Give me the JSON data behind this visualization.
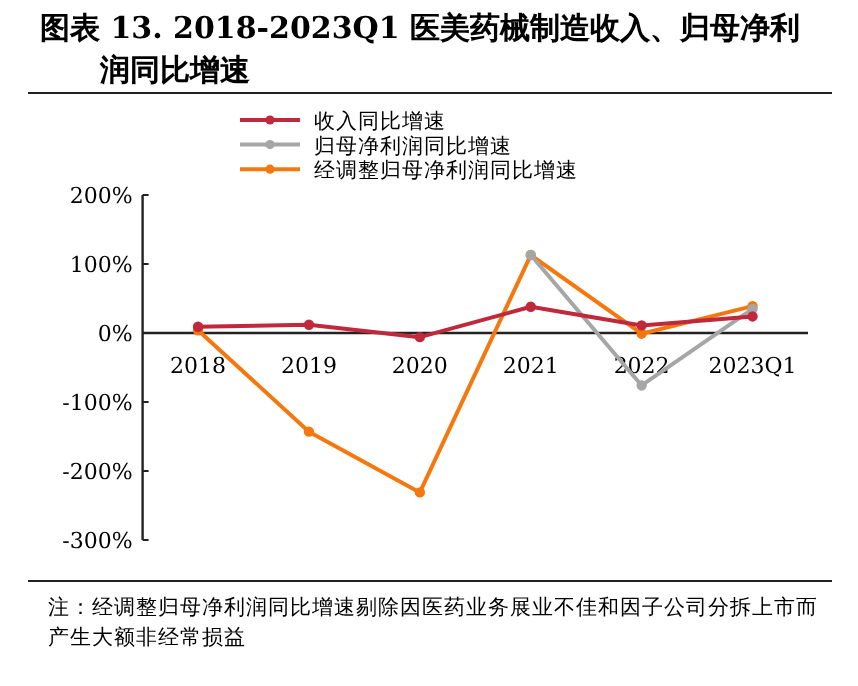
{
  "chart_data": {
    "type": "line",
    "title": "图表 13. 2018-2023Q1 医美药械制造收入、归母净利润同比增速",
    "categories": [
      "2018",
      "2019",
      "2020",
      "2021",
      "2022",
      "2023Q1"
    ],
    "series": [
      {
        "name": "收入同比增速",
        "color": "#c0283c",
        "values": [
          9,
          12,
          -6,
          38,
          11,
          24
        ]
      },
      {
        "name": "归母净利润同比增速",
        "color": "#a6a6a6",
        "values": [
          null,
          null,
          null,
          113,
          -76,
          35
        ]
      },
      {
        "name": "经调整归母净利润同比增速",
        "color": "#f5780f",
        "values": [
          4,
          -143,
          -231,
          113,
          -1,
          39
        ]
      }
    ],
    "ylim": [
      -300,
      200
    ],
    "yticks": [
      {
        "value": -300,
        "label": "-300%"
      },
      {
        "value": -200,
        "label": "-200%"
      },
      {
        "value": -100,
        "label": "-100%"
      },
      {
        "value": 0,
        "label": "0%"
      },
      {
        "value": 100,
        "label": "100%"
      },
      {
        "value": 200,
        "label": "200%"
      }
    ],
    "legend": "top",
    "marker": "circle",
    "line_style": "solid",
    "annotations": [
      "注：经调整归母净利润同比增速剔除因医药业务展业不佳和因子公司分拆上市而产生大额非经常损益"
    ]
  }
}
